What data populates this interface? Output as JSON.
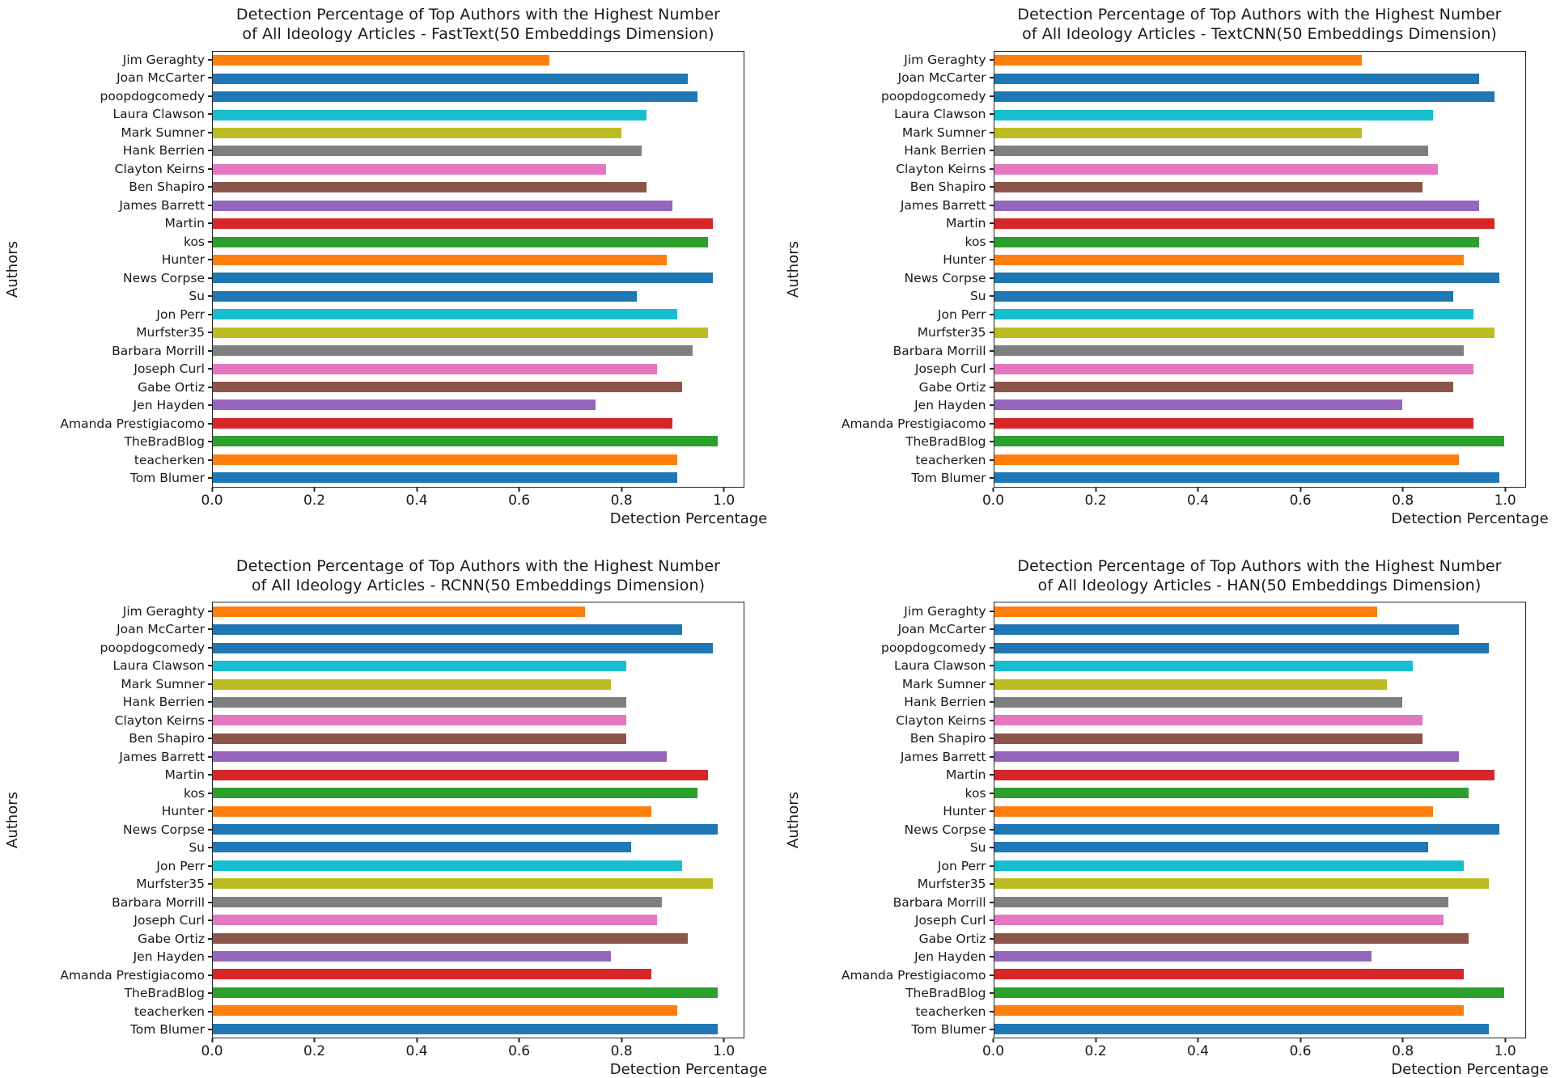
{
  "figure": {
    "background": "#ffffff",
    "frame_color": "#262626",
    "text_color": "#1a1a1a"
  },
  "axis": {
    "xlabel": "Detection Percentage",
    "ylabel": "Authors",
    "xticks": [
      "0.0",
      "0.2",
      "0.4",
      "0.6",
      "0.8",
      "1.0"
    ],
    "xtick_values": [
      0,
      0.2,
      0.4,
      0.6,
      0.8,
      1.0
    ],
    "xmax": 1.04
  },
  "authors": [
    "Jim Geraghty",
    "Joan McCarter",
    "poopdogcomedy",
    "Laura Clawson",
    "Mark Sumner",
    "Hank Berrien",
    "Clayton Keirns",
    "Ben Shapiro",
    "James Barrett",
    "Martin",
    "kos",
    "Hunter",
    "News Corpse",
    "Su",
    "Jon Perr",
    "Murfster35",
    "Barbara Morrill",
    "Joseph Curl",
    "Gabe Ortiz",
    "Jen Hayden",
    "Amanda Prestigiacomo",
    "TheBradBlog",
    "teacherken",
    "Tom Blumer"
  ],
  "bar_colors": [
    "#ff7f0e",
    "#1f77b4",
    "#1f77b4",
    "#17becf",
    "#bcbd22",
    "#7f7f7f",
    "#e377c2",
    "#8c564b",
    "#9467bd",
    "#d62728",
    "#2ca02c",
    "#ff7f0e",
    "#1f77b4",
    "#1f77b4",
    "#17becf",
    "#bcbd22",
    "#7f7f7f",
    "#e377c2",
    "#8c564b",
    "#9467bd",
    "#d62728",
    "#2ca02c",
    "#ff7f0e",
    "#1f77b4"
  ],
  "chart_data": [
    {
      "id": "fasttext",
      "type": "bar",
      "orientation": "horizontal",
      "title": "Detection Percentage of Top Authors with the Highest Number of All Ideology Articles - FastText(50 Embeddings Dimension)",
      "title_lines": [
        "Detection Percentage of Top Authors with the Highest Number",
        "of All Ideology Articles - FastText(50 Embeddings Dimension)"
      ],
      "xlabel": "Detection Percentage",
      "ylabel": "Authors",
      "xlim": [
        0,
        1.04
      ],
      "legend": "none",
      "grid": false,
      "categories": [
        "Jim Geraghty",
        "Joan McCarter",
        "poopdogcomedy",
        "Laura Clawson",
        "Mark Sumner",
        "Hank Berrien",
        "Clayton Keirns",
        "Ben Shapiro",
        "James Barrett",
        "Martin",
        "kos",
        "Hunter",
        "News Corpse",
        "Su",
        "Jon Perr",
        "Murfster35",
        "Barbara Morrill",
        "Joseph Curl",
        "Gabe Ortiz",
        "Jen Hayden",
        "Amanda Prestigiacomo",
        "TheBradBlog",
        "teacherken",
        "Tom Blumer"
      ],
      "values": [
        0.66,
        0.93,
        0.95,
        0.85,
        0.8,
        0.84,
        0.77,
        0.85,
        0.9,
        0.98,
        0.97,
        0.89,
        0.98,
        0.83,
        0.91,
        0.97,
        0.94,
        0.87,
        0.92,
        0.75,
        0.9,
        0.99,
        0.91,
        0.91
      ]
    },
    {
      "id": "textcnn",
      "type": "bar",
      "orientation": "horizontal",
      "title": "Detection Percentage of Top Authors with the Highest Number of All Ideology Articles - TextCNN(50 Embeddings Dimension)",
      "title_lines": [
        "Detection Percentage of Top Authors with the Highest Number",
        "of All Ideology Articles - TextCNN(50 Embeddings Dimension)"
      ],
      "xlabel": "Detection Percentage",
      "ylabel": "Authors",
      "xlim": [
        0,
        1.04
      ],
      "legend": "none",
      "grid": false,
      "categories": [
        "Jim Geraghty",
        "Joan McCarter",
        "poopdogcomedy",
        "Laura Clawson",
        "Mark Sumner",
        "Hank Berrien",
        "Clayton Keirns",
        "Ben Shapiro",
        "James Barrett",
        "Martin",
        "kos",
        "Hunter",
        "News Corpse",
        "Su",
        "Jon Perr",
        "Murfster35",
        "Barbara Morrill",
        "Joseph Curl",
        "Gabe Ortiz",
        "Jen Hayden",
        "Amanda Prestigiacomo",
        "TheBradBlog",
        "teacherken",
        "Tom Blumer"
      ],
      "values": [
        0.72,
        0.95,
        0.98,
        0.86,
        0.72,
        0.85,
        0.87,
        0.84,
        0.95,
        0.98,
        0.95,
        0.92,
        0.99,
        0.9,
        0.94,
        0.98,
        0.92,
        0.94,
        0.9,
        0.8,
        0.94,
        1.0,
        0.91,
        0.99
      ]
    },
    {
      "id": "rcnn",
      "type": "bar",
      "orientation": "horizontal",
      "title": "Detection Percentage of Top Authors with the Highest Number of All Ideology Articles - RCNN(50 Embeddings Dimension)",
      "title_lines": [
        "Detection Percentage of Top Authors with the Highest Number",
        "of All Ideology Articles - RCNN(50 Embeddings Dimension)"
      ],
      "xlabel": "Detection Percentage",
      "ylabel": "Authors",
      "xlim": [
        0,
        1.04
      ],
      "legend": "none",
      "grid": false,
      "categories": [
        "Jim Geraghty",
        "Joan McCarter",
        "poopdogcomedy",
        "Laura Clawson",
        "Mark Sumner",
        "Hank Berrien",
        "Clayton Keirns",
        "Ben Shapiro",
        "James Barrett",
        "Martin",
        "kos",
        "Hunter",
        "News Corpse",
        "Su",
        "Jon Perr",
        "Murfster35",
        "Barbara Morrill",
        "Joseph Curl",
        "Gabe Ortiz",
        "Jen Hayden",
        "Amanda Prestigiacomo",
        "TheBradBlog",
        "teacherken",
        "Tom Blumer"
      ],
      "values": [
        0.73,
        0.92,
        0.98,
        0.81,
        0.78,
        0.81,
        0.81,
        0.81,
        0.89,
        0.97,
        0.95,
        0.86,
        0.99,
        0.82,
        0.92,
        0.98,
        0.88,
        0.87,
        0.93,
        0.78,
        0.86,
        0.99,
        0.91,
        0.99
      ]
    },
    {
      "id": "han",
      "type": "bar",
      "orientation": "horizontal",
      "title": "Detection Percentage of Top Authors with the Highest Number of All Ideology Articles - HAN(50 Embeddings Dimension)",
      "title_lines": [
        "Detection Percentage of Top Authors with the Highest Number",
        "of All Ideology Articles - HAN(50 Embeddings Dimension)"
      ],
      "xlabel": "Detection Percentage",
      "ylabel": "Authors",
      "xlim": [
        0,
        1.04
      ],
      "legend": "none",
      "grid": false,
      "categories": [
        "Jim Geraghty",
        "Joan McCarter",
        "poopdogcomedy",
        "Laura Clawson",
        "Mark Sumner",
        "Hank Berrien",
        "Clayton Keirns",
        "Ben Shapiro",
        "James Barrett",
        "Martin",
        "kos",
        "Hunter",
        "News Corpse",
        "Su",
        "Jon Perr",
        "Murfster35",
        "Barbara Morrill",
        "Joseph Curl",
        "Gabe Ortiz",
        "Jen Hayden",
        "Amanda Prestigiacomo",
        "TheBradBlog",
        "teacherken",
        "Tom Blumer"
      ],
      "values": [
        0.75,
        0.91,
        0.97,
        0.82,
        0.77,
        0.8,
        0.84,
        0.84,
        0.91,
        0.98,
        0.93,
        0.86,
        0.99,
        0.85,
        0.92,
        0.97,
        0.89,
        0.88,
        0.93,
        0.74,
        0.92,
        1.0,
        0.92,
        0.97
      ]
    }
  ]
}
